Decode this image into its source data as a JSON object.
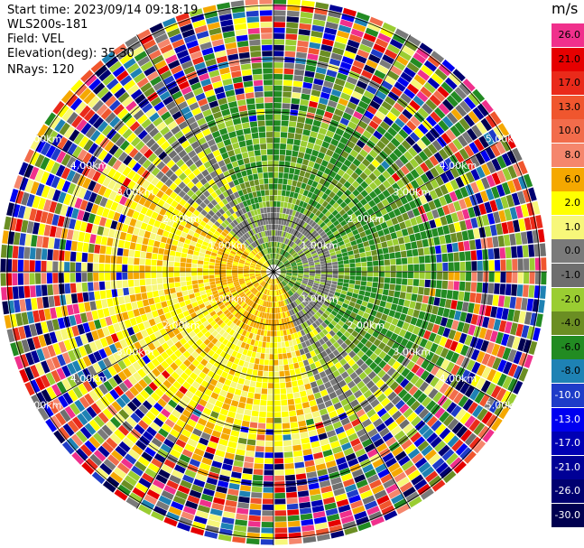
{
  "header": {
    "start_time": "Start time: 2023/09/14 09:18:19",
    "instrument": "WLS200s-181",
    "field": "Field: VEL",
    "elevation": "Elevation(deg): 35.30",
    "nrays": "NRays: 120"
  },
  "colorbar": {
    "unit": "m/s",
    "entries": [
      {
        "label": "26.0",
        "color": "#f0308c",
        "text": "#000000"
      },
      {
        "label": "21.0",
        "color": "#e60000",
        "text": "#000000"
      },
      {
        "label": "17.0",
        "color": "#ea2a1a",
        "text": "#000000"
      },
      {
        "label": "13.0",
        "color": "#f0562e",
        "text": "#000000"
      },
      {
        "label": "10.0",
        "color": "#f26c4b",
        "text": "#000000"
      },
      {
        "label": "8.0",
        "color": "#f5866c",
        "text": "#000000"
      },
      {
        "label": "6.0",
        "color": "#f5a800",
        "text": "#000000"
      },
      {
        "label": "2.0",
        "color": "#ffff00",
        "text": "#000000"
      },
      {
        "label": "1.0",
        "color": "#f7f77a",
        "text": "#000000"
      },
      {
        "label": "0.0",
        "color": "#7a7a7a",
        "text": "#000000"
      },
      {
        "label": "-1.0",
        "color": "#6e6e6e",
        "text": "#000000"
      },
      {
        "label": "-2.0",
        "color": "#9acd32",
        "text": "#000000"
      },
      {
        "label": "-4.0",
        "color": "#6b8e23",
        "text": "#000000"
      },
      {
        "label": "-6.0",
        "color": "#228b22",
        "text": "#000000"
      },
      {
        "label": "-8.0",
        "color": "#1e82b4",
        "text": "#000000"
      },
      {
        "label": "-10.0",
        "color": "#1e3cc8",
        "text": "#ffffff"
      },
      {
        "label": "-13.0",
        "color": "#0000f0",
        "text": "#ffffff"
      },
      {
        "label": "-17.0",
        "color": "#0000b4",
        "text": "#ffffff"
      },
      {
        "label": "-21.0",
        "color": "#000096",
        "text": "#ffffff"
      },
      {
        "label": "-26.0",
        "color": "#000070",
        "text": "#ffffff"
      },
      {
        "label": "-30.0",
        "color": "#000050",
        "text": "#ffffff"
      }
    ]
  },
  "range_rings": [
    {
      "label": "1.00km"
    },
    {
      "label": "2.00km"
    },
    {
      "label": "3.00km"
    },
    {
      "label": "4.00km"
    },
    {
      "label": "5.00km"
    }
  ]
}
